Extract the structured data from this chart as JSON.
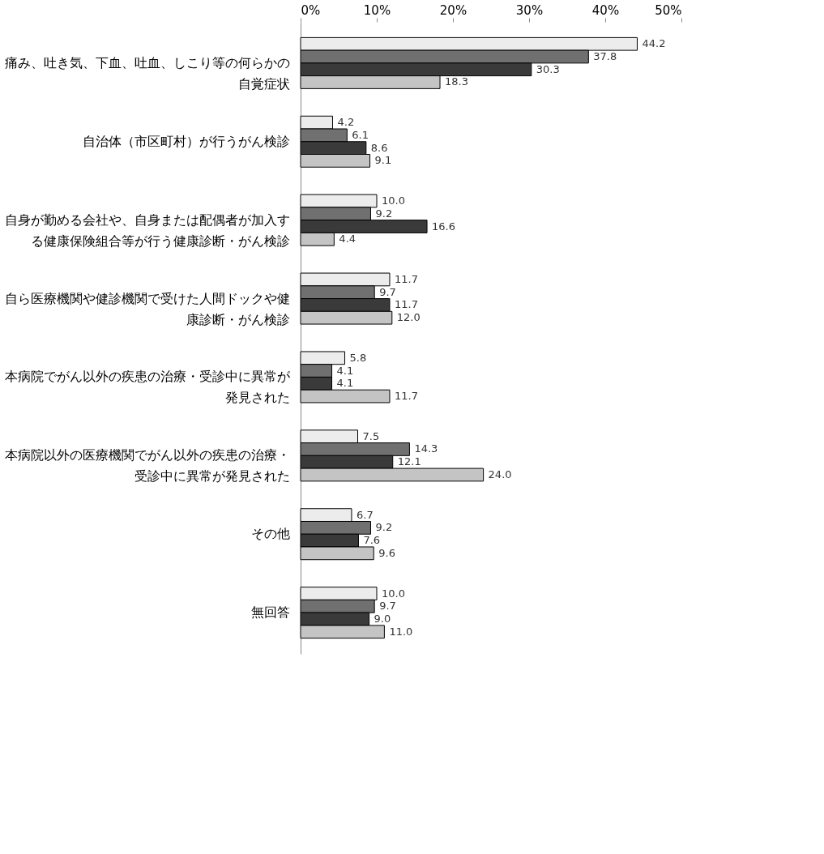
{
  "chart_data": {
    "type": "bar",
    "orientation": "horizontal",
    "categories": [
      "痛み、吐き気、下血、吐血、しこり等の何らかの自覚症状",
      "自治体（市区町村）が行うがん検診",
      "自身が勤める会社や、自身または配偶者が加入する健康保険組合等が行う健康診断・がん検診",
      "自ら医療機関や健診機関で受けた人間ドックや健康診断・がん検診",
      "本病院でがん以外の疾患の治療・受診中に異常が発見された",
      "本病院以外の医療機関でがん以外の疾患の治療・受診中に異常が発見された",
      "その他",
      "無回答"
    ],
    "series": [
      {
        "color": "#ececec",
        "values": [
          44.2,
          4.2,
          10.0,
          11.7,
          5.8,
          7.5,
          6.7,
          10.0
        ],
        "value_labels": [
          "44.2",
          "4.2",
          "10.0",
          "11.7",
          "5.8",
          "7.5",
          "6.7",
          "10.0"
        ]
      },
      {
        "color": "#707070",
        "values": [
          37.8,
          6.1,
          9.2,
          9.7,
          4.1,
          14.3,
          9.2,
          9.7
        ],
        "value_labels": [
          "37.8",
          "6.1",
          "9.2",
          "9.7",
          "4.1",
          "14.3",
          "9.2",
          "9.7"
        ]
      },
      {
        "color": "#3a3a3a",
        "values": [
          30.3,
          8.6,
          16.6,
          11.7,
          4.1,
          12.1,
          7.6,
          9.0
        ],
        "value_labels": [
          "30.3",
          "8.6",
          "16.6",
          "11.7",
          "4.1",
          "12.1",
          "7.6",
          "9.0"
        ]
      },
      {
        "color": "#c4c4c4",
        "values": [
          18.3,
          9.1,
          4.4,
          12.0,
          11.7,
          24.0,
          9.6,
          11.0
        ],
        "value_labels": [
          "18.3",
          "9.1",
          "4.4",
          "12.0",
          "11.7",
          "24.0",
          "9.6",
          "11.0"
        ]
      }
    ],
    "xlim": [
      0,
      50
    ],
    "xticks": [
      {
        "value": 0,
        "label": "0%"
      },
      {
        "value": 10,
        "label": "10%"
      },
      {
        "value": 20,
        "label": "20%"
      },
      {
        "value": 30,
        "label": "30%"
      },
      {
        "value": 40,
        "label": "40%"
      },
      {
        "value": 50,
        "label": "50%"
      }
    ],
    "grid": false,
    "legend": false
  }
}
